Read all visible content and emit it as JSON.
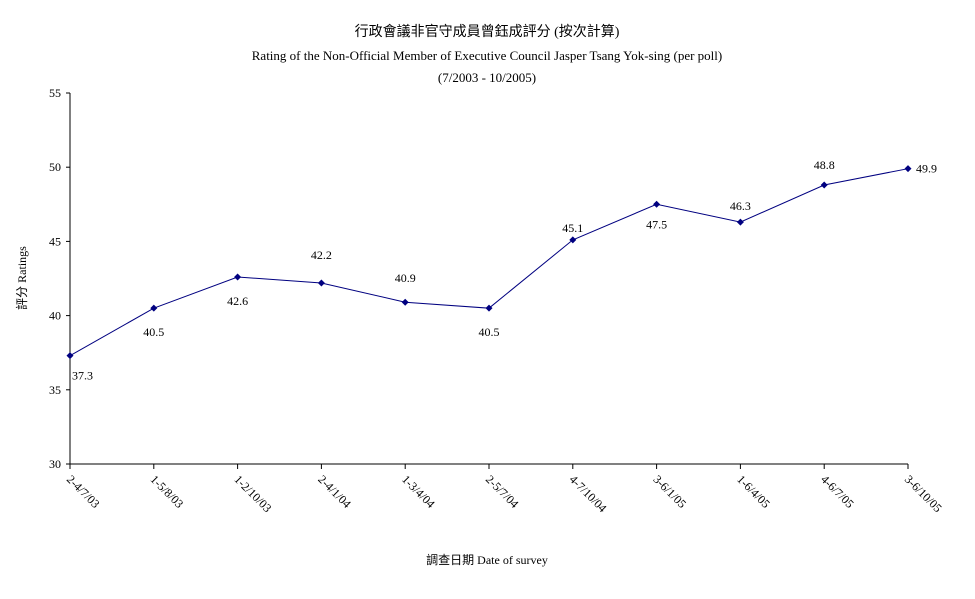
{
  "chart_data": {
    "type": "line",
    "title": "行政會議非官守成員曾鈺成評分 (按次計算)",
    "subtitle": "Rating of the Non-Official Member of Executive Council Jasper Tsang Yok-sing  (per poll)",
    "subtitle2": "(7/2003 - 10/2005)",
    "xlabel": "調查日期 Date of survey",
    "ylabel": "評分 Ratings",
    "ylim": [
      30,
      55
    ],
    "yticks": [
      30,
      35,
      40,
      45,
      50,
      55
    ],
    "grid": false,
    "categories": [
      "2-4/7/03",
      "1-5/8/03",
      "1-2/10/03",
      "2-4/1/04",
      "1-3/4/04",
      "2-5/7/04",
      "4-7/10/04",
      "3-6/1/05",
      "1-6/4/05",
      "4-6/7/05",
      "3-6/10/05"
    ],
    "series": [
      {
        "values": [
          37.3,
          40.5,
          42.6,
          42.2,
          40.9,
          40.5,
          45.1,
          47.5,
          46.3,
          48.8,
          49.9
        ],
        "data_labels": [
          "37.3",
          "40.5",
          "42.6",
          "42.2",
          "40.9",
          "40.5",
          "45.1",
          "47.5",
          "46.3",
          "48.8",
          "49.9"
        ],
        "color": "#000080"
      }
    ]
  }
}
